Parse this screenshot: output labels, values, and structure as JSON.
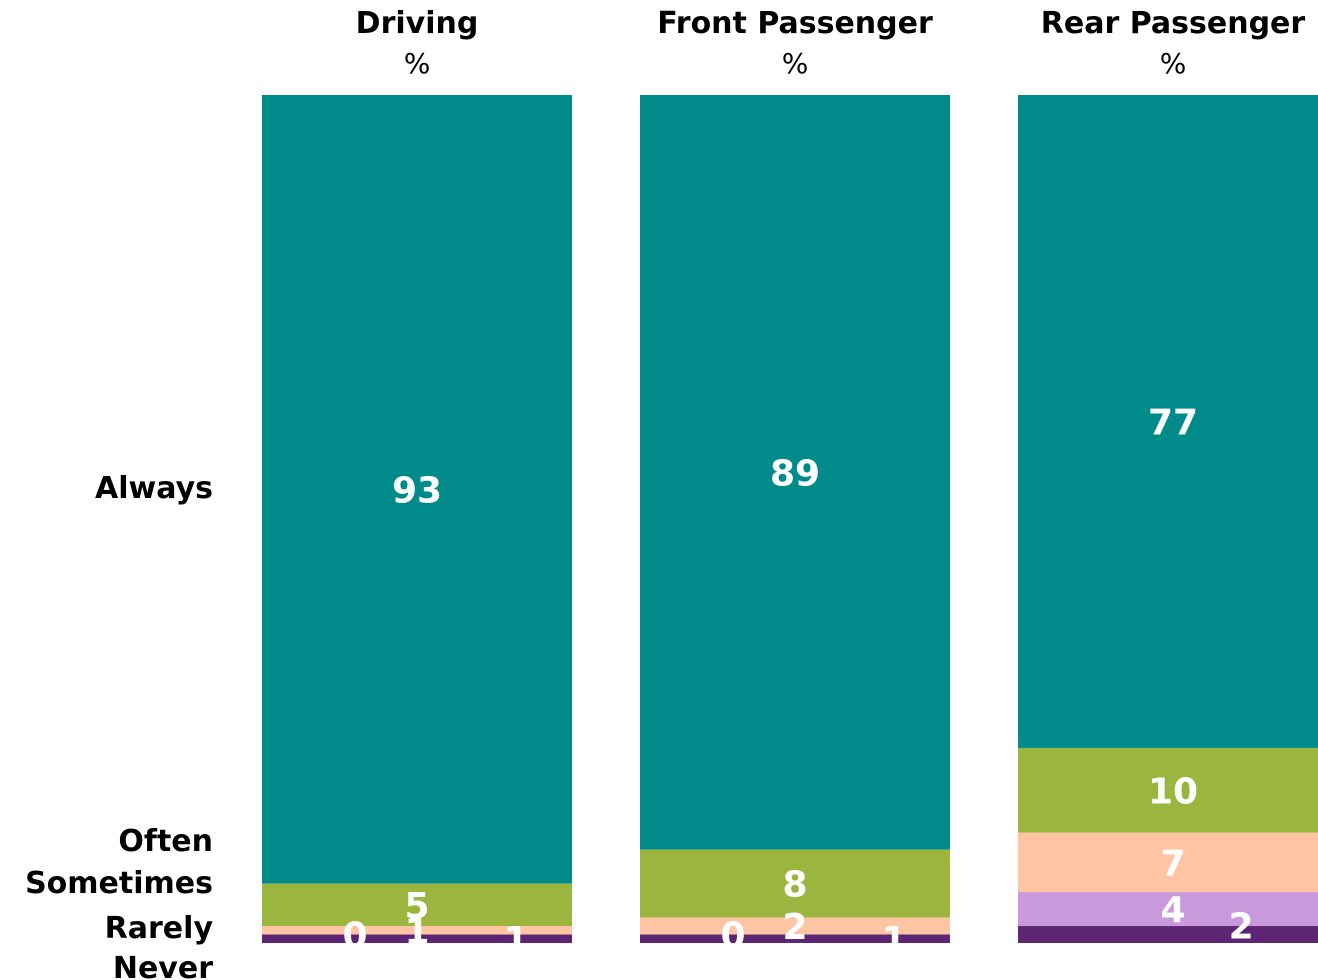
{
  "chart_data": {
    "type": "bar",
    "stacked": true,
    "orientation": "vertical",
    "columns": [
      {
        "title": "Driving",
        "unit": "%"
      },
      {
        "title": "Front Passenger",
        "unit": "%"
      },
      {
        "title": "Rear Passenger",
        "unit": "%"
      }
    ],
    "categories": [
      "Driving",
      "Front Passenger",
      "Rear Passenger"
    ],
    "series": [
      {
        "name": "Always",
        "color": "#008B8B",
        "values": [
          93,
          89,
          77
        ]
      },
      {
        "name": "Often",
        "color": "#9BB53E",
        "values": [
          5,
          8,
          10
        ]
      },
      {
        "name": "Sometimes",
        "color": "#FEC4A4",
        "values": [
          1,
          2,
          7
        ]
      },
      {
        "name": "Rarely",
        "color": "#C899DB",
        "values": [
          0,
          0,
          4
        ]
      },
      {
        "name": "Never",
        "color": "#5E2574",
        "values": [
          1,
          1,
          2
        ]
      }
    ],
    "ylim": [
      0,
      100
    ],
    "grid": false,
    "legend": "left"
  }
}
